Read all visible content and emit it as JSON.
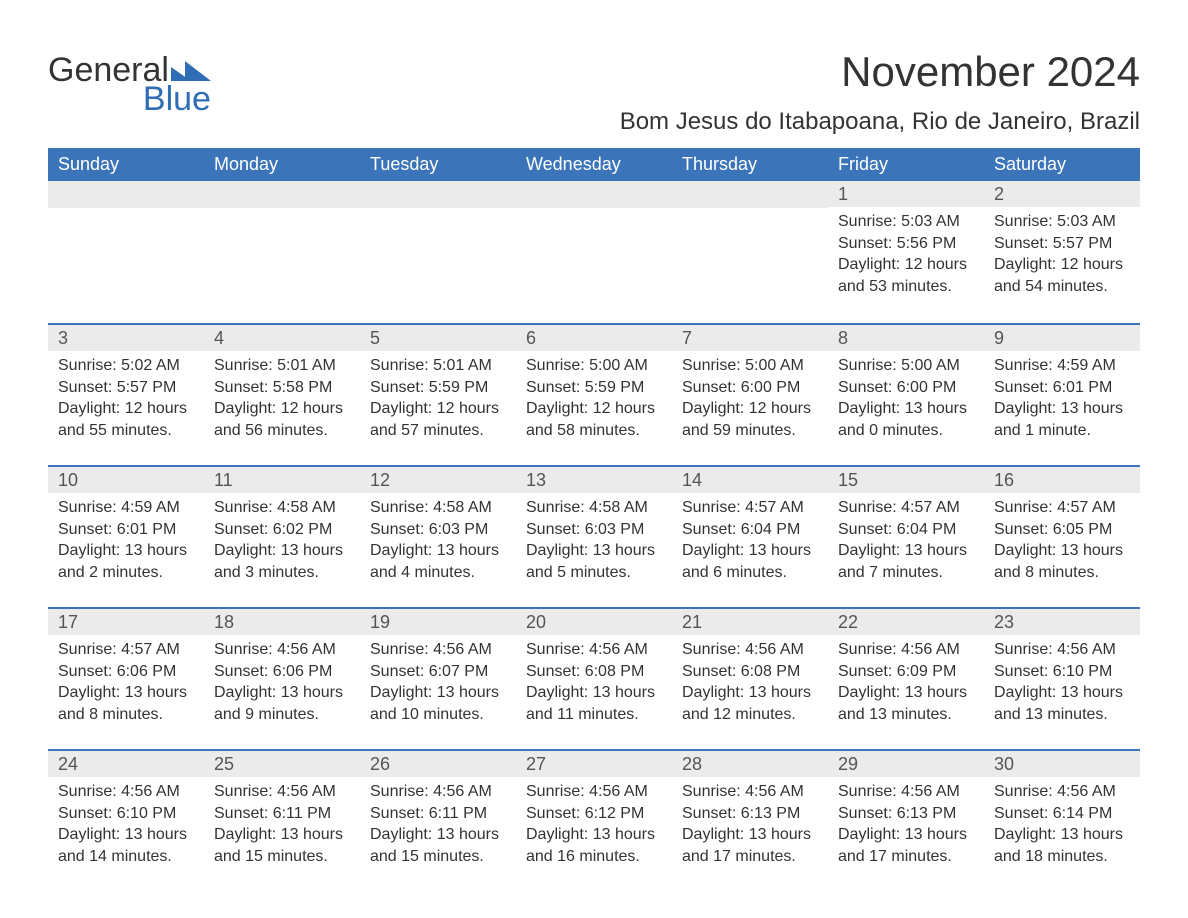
{
  "logo": {
    "line1": "General",
    "line2": "Blue"
  },
  "title": "November 2024",
  "location": "Bom Jesus do Itabapoana, Rio de Janeiro, Brazil",
  "colors": {
    "header_bg": "#3b74b9",
    "header_fg": "#ffffff",
    "row_divider": "#3b74b9",
    "daynum_bg": "#ebebeb",
    "text": "#333333",
    "brand_blue": "#2f6eb5"
  },
  "typography": {
    "title_fontsize": 42,
    "location_fontsize": 24,
    "header_fontsize": 18,
    "daynum_fontsize": 18,
    "body_fontsize": 16
  },
  "weekdays": [
    "Sunday",
    "Monday",
    "Tuesday",
    "Wednesday",
    "Thursday",
    "Friday",
    "Saturday"
  ],
  "weeks": [
    [
      {
        "blank": true
      },
      {
        "blank": true
      },
      {
        "blank": true
      },
      {
        "blank": true
      },
      {
        "blank": true
      },
      {
        "n": "1",
        "sunrise": "Sunrise: 5:03 AM",
        "sunset": "Sunset: 5:56 PM",
        "dl1": "Daylight: 12 hours",
        "dl2": "and 53 minutes."
      },
      {
        "n": "2",
        "sunrise": "Sunrise: 5:03 AM",
        "sunset": "Sunset: 5:57 PM",
        "dl1": "Daylight: 12 hours",
        "dl2": "and 54 minutes."
      }
    ],
    [
      {
        "n": "3",
        "sunrise": "Sunrise: 5:02 AM",
        "sunset": "Sunset: 5:57 PM",
        "dl1": "Daylight: 12 hours",
        "dl2": "and 55 minutes."
      },
      {
        "n": "4",
        "sunrise": "Sunrise: 5:01 AM",
        "sunset": "Sunset: 5:58 PM",
        "dl1": "Daylight: 12 hours",
        "dl2": "and 56 minutes."
      },
      {
        "n": "5",
        "sunrise": "Sunrise: 5:01 AM",
        "sunset": "Sunset: 5:59 PM",
        "dl1": "Daylight: 12 hours",
        "dl2": "and 57 minutes."
      },
      {
        "n": "6",
        "sunrise": "Sunrise: 5:00 AM",
        "sunset": "Sunset: 5:59 PM",
        "dl1": "Daylight: 12 hours",
        "dl2": "and 58 minutes."
      },
      {
        "n": "7",
        "sunrise": "Sunrise: 5:00 AM",
        "sunset": "Sunset: 6:00 PM",
        "dl1": "Daylight: 12 hours",
        "dl2": "and 59 minutes."
      },
      {
        "n": "8",
        "sunrise": "Sunrise: 5:00 AM",
        "sunset": "Sunset: 6:00 PM",
        "dl1": "Daylight: 13 hours",
        "dl2": "and 0 minutes."
      },
      {
        "n": "9",
        "sunrise": "Sunrise: 4:59 AM",
        "sunset": "Sunset: 6:01 PM",
        "dl1": "Daylight: 13 hours",
        "dl2": "and 1 minute."
      }
    ],
    [
      {
        "n": "10",
        "sunrise": "Sunrise: 4:59 AM",
        "sunset": "Sunset: 6:01 PM",
        "dl1": "Daylight: 13 hours",
        "dl2": "and 2 minutes."
      },
      {
        "n": "11",
        "sunrise": "Sunrise: 4:58 AM",
        "sunset": "Sunset: 6:02 PM",
        "dl1": "Daylight: 13 hours",
        "dl2": "and 3 minutes."
      },
      {
        "n": "12",
        "sunrise": "Sunrise: 4:58 AM",
        "sunset": "Sunset: 6:03 PM",
        "dl1": "Daylight: 13 hours",
        "dl2": "and 4 minutes."
      },
      {
        "n": "13",
        "sunrise": "Sunrise: 4:58 AM",
        "sunset": "Sunset: 6:03 PM",
        "dl1": "Daylight: 13 hours",
        "dl2": "and 5 minutes."
      },
      {
        "n": "14",
        "sunrise": "Sunrise: 4:57 AM",
        "sunset": "Sunset: 6:04 PM",
        "dl1": "Daylight: 13 hours",
        "dl2": "and 6 minutes."
      },
      {
        "n": "15",
        "sunrise": "Sunrise: 4:57 AM",
        "sunset": "Sunset: 6:04 PM",
        "dl1": "Daylight: 13 hours",
        "dl2": "and 7 minutes."
      },
      {
        "n": "16",
        "sunrise": "Sunrise: 4:57 AM",
        "sunset": "Sunset: 6:05 PM",
        "dl1": "Daylight: 13 hours",
        "dl2": "and 8 minutes."
      }
    ],
    [
      {
        "n": "17",
        "sunrise": "Sunrise: 4:57 AM",
        "sunset": "Sunset: 6:06 PM",
        "dl1": "Daylight: 13 hours",
        "dl2": "and 8 minutes."
      },
      {
        "n": "18",
        "sunrise": "Sunrise: 4:56 AM",
        "sunset": "Sunset: 6:06 PM",
        "dl1": "Daylight: 13 hours",
        "dl2": "and 9 minutes."
      },
      {
        "n": "19",
        "sunrise": "Sunrise: 4:56 AM",
        "sunset": "Sunset: 6:07 PM",
        "dl1": "Daylight: 13 hours",
        "dl2": "and 10 minutes."
      },
      {
        "n": "20",
        "sunrise": "Sunrise: 4:56 AM",
        "sunset": "Sunset: 6:08 PM",
        "dl1": "Daylight: 13 hours",
        "dl2": "and 11 minutes."
      },
      {
        "n": "21",
        "sunrise": "Sunrise: 4:56 AM",
        "sunset": "Sunset: 6:08 PM",
        "dl1": "Daylight: 13 hours",
        "dl2": "and 12 minutes."
      },
      {
        "n": "22",
        "sunrise": "Sunrise: 4:56 AM",
        "sunset": "Sunset: 6:09 PM",
        "dl1": "Daylight: 13 hours",
        "dl2": "and 13 minutes."
      },
      {
        "n": "23",
        "sunrise": "Sunrise: 4:56 AM",
        "sunset": "Sunset: 6:10 PM",
        "dl1": "Daylight: 13 hours",
        "dl2": "and 13 minutes."
      }
    ],
    [
      {
        "n": "24",
        "sunrise": "Sunrise: 4:56 AM",
        "sunset": "Sunset: 6:10 PM",
        "dl1": "Daylight: 13 hours",
        "dl2": "and 14 minutes."
      },
      {
        "n": "25",
        "sunrise": "Sunrise: 4:56 AM",
        "sunset": "Sunset: 6:11 PM",
        "dl1": "Daylight: 13 hours",
        "dl2": "and 15 minutes."
      },
      {
        "n": "26",
        "sunrise": "Sunrise: 4:56 AM",
        "sunset": "Sunset: 6:11 PM",
        "dl1": "Daylight: 13 hours",
        "dl2": "and 15 minutes."
      },
      {
        "n": "27",
        "sunrise": "Sunrise: 4:56 AM",
        "sunset": "Sunset: 6:12 PM",
        "dl1": "Daylight: 13 hours",
        "dl2": "and 16 minutes."
      },
      {
        "n": "28",
        "sunrise": "Sunrise: 4:56 AM",
        "sunset": "Sunset: 6:13 PM",
        "dl1": "Daylight: 13 hours",
        "dl2": "and 17 minutes."
      },
      {
        "n": "29",
        "sunrise": "Sunrise: 4:56 AM",
        "sunset": "Sunset: 6:13 PM",
        "dl1": "Daylight: 13 hours",
        "dl2": "and 17 minutes."
      },
      {
        "n": "30",
        "sunrise": "Sunrise: 4:56 AM",
        "sunset": "Sunset: 6:14 PM",
        "dl1": "Daylight: 13 hours",
        "dl2": "and 18 minutes."
      }
    ]
  ]
}
